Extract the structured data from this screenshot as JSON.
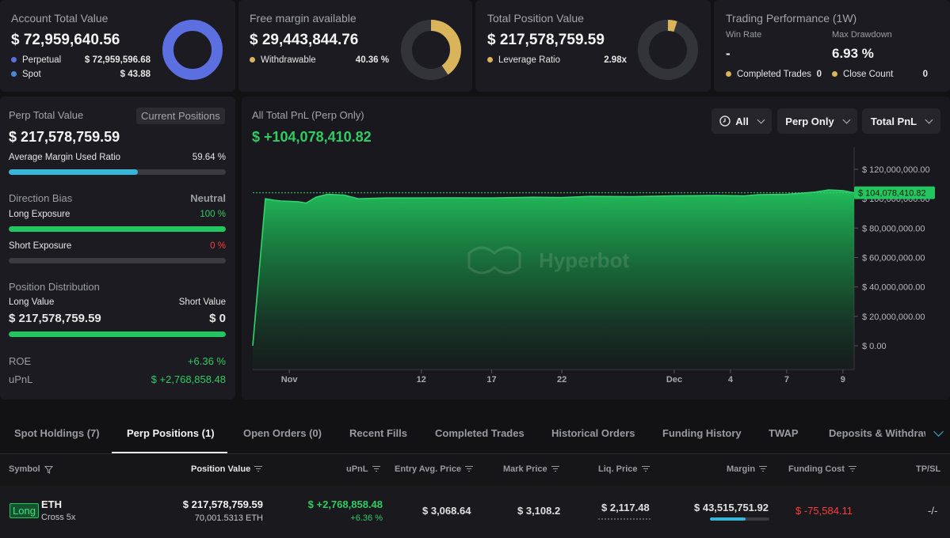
{
  "account": {
    "title": "Account Total Value",
    "value": "$ 72,959,640.56",
    "perpetual_label": "Perpetual",
    "perpetual_value": "$ 72,959,596.68",
    "spot_label": "Spot",
    "spot_value": "$ 43.88",
    "perp_color": "#5b6fe0",
    "spot_color": "#4a87d8",
    "perp_share": 0.9999994
  },
  "free_margin": {
    "title": "Free margin available",
    "value": "$ 29,443,844.76",
    "withdrawable_label": "Withdrawable",
    "withdrawable_value": "40.36 %",
    "withdrawable_share": 0.4036,
    "color": "#d9b45a"
  },
  "position_value": {
    "title": "Total Position Value",
    "value": "$ 217,578,759.59",
    "leverage_label": "Leverage Ratio",
    "leverage_value": "2.98x",
    "ring_share": 0.05,
    "color": "#d9b45a"
  },
  "performance": {
    "title": "Trading Performance (1W)",
    "win_rate_label": "Win Rate",
    "win_rate_value": "-",
    "max_drawdown_label": "Max Drawdown",
    "max_drawdown_value": "6.93 %",
    "completed_trades_label": "Completed Trades",
    "completed_trades_value": "0",
    "close_count_label": "Close Count",
    "close_count_value": "0"
  },
  "perp": {
    "title": "Perp Total Value",
    "current_positions_label": "Current Positions",
    "value": "$ 217,578,759.59",
    "margin_ratio_label": "Average Margin Used Ratio",
    "margin_ratio_value": "59.64 %",
    "margin_ratio": 0.5964,
    "direction_bias_label": "Direction Bias",
    "direction_bias_value": "Neutral",
    "long_exposure_label": "Long Exposure",
    "long_exposure_value": "100 %",
    "long_exposure": 1.0,
    "short_exposure_label": "Short Exposure",
    "short_exposure_value": "0 %",
    "short_exposure": 0.0,
    "distribution_label": "Position Distribution",
    "long_value_label": "Long Value",
    "short_value_label": "Short Value",
    "long_value": "$ 217,578,759.59",
    "short_value": "$ 0",
    "long_share": 1.0,
    "roe_label": "ROE",
    "roe_value": "+6.36 %",
    "upnl_label": "uPnL",
    "upnl_value": "$ +2,768,858.48"
  },
  "pnl_chart": {
    "title": "All Total PnL (Perp Only)",
    "value": "$ +104,078,410.82",
    "current_label": "$ 104,078,410.82",
    "filter_time": "All",
    "filter_scope": "Perp Only",
    "filter_metric": "Total PnL",
    "watermark": "Hyperbot"
  },
  "chart_data": {
    "type": "area",
    "xlabel": "",
    "ylabel": "",
    "x_ticks": [
      "Nov",
      "12",
      "17",
      "22",
      "Dec",
      "4",
      "7",
      "9"
    ],
    "y_ticks": [
      "$ 120,000,000.00",
      "$ 100,000,000.00",
      "$ 80,000,000.00",
      "$ 60,000,000.00",
      "$ 40,000,000.00",
      "$ 20,000,000.00",
      "$ 0.00"
    ],
    "ylim": [
      0,
      120000000
    ],
    "color": "#22c55e",
    "series": [
      {
        "x": [
          0,
          0.9,
          1.5,
          2.0,
          3.2,
          3.8,
          4.5,
          5.3,
          6.5,
          7.5,
          9.5,
          12,
          14,
          17,
          20,
          22,
          24,
          27,
          30,
          33,
          35,
          36,
          38,
          40,
          41,
          42,
          42.8
        ],
        "values": [
          0,
          100000000,
          99000000,
          98500000,
          98000000,
          97000000,
          101000000,
          103000000,
          102500000,
          100000000,
          100500000,
          100500000,
          100600000,
          100500000,
          101000000,
          100800000,
          101600000,
          101400000,
          102000000,
          102200000,
          102000000,
          102800000,
          103000000,
          104500000,
          106000000,
          105500000,
          104078410.82
        ]
      }
    ]
  },
  "tabs": [
    "Spot Holdings (7)",
    "Perp Positions (1)",
    "Open Orders (0)",
    "Recent Fills",
    "Completed Trades",
    "Historical Orders",
    "Funding History",
    "TWAP",
    "Deposits & Withdraw"
  ],
  "table": {
    "headers": [
      "Symbol",
      "Position Value",
      "uPnL",
      "Entry Avg. Price",
      "Mark Price",
      "Liq. Price",
      "Margin",
      "Funding Cost",
      "TP/SL"
    ],
    "row": {
      "side": "Long",
      "symbol": "ETH",
      "margin_mode": "Cross 5x",
      "position_value": "$ 217,578,759.59",
      "position_size": "70,001.5313 ETH",
      "upnl": "$ +2,768,858.48",
      "upnl_pct": "+6.36 %",
      "entry_price": "$ 3,068.64",
      "mark_price": "$ 3,108.2",
      "liq_price": "$ 2,117.48",
      "margin": "$ 43,515,751.92",
      "margin_ratio": 0.5964,
      "funding_cost": "$ -75,584.11",
      "tpsl": "-/-"
    }
  }
}
